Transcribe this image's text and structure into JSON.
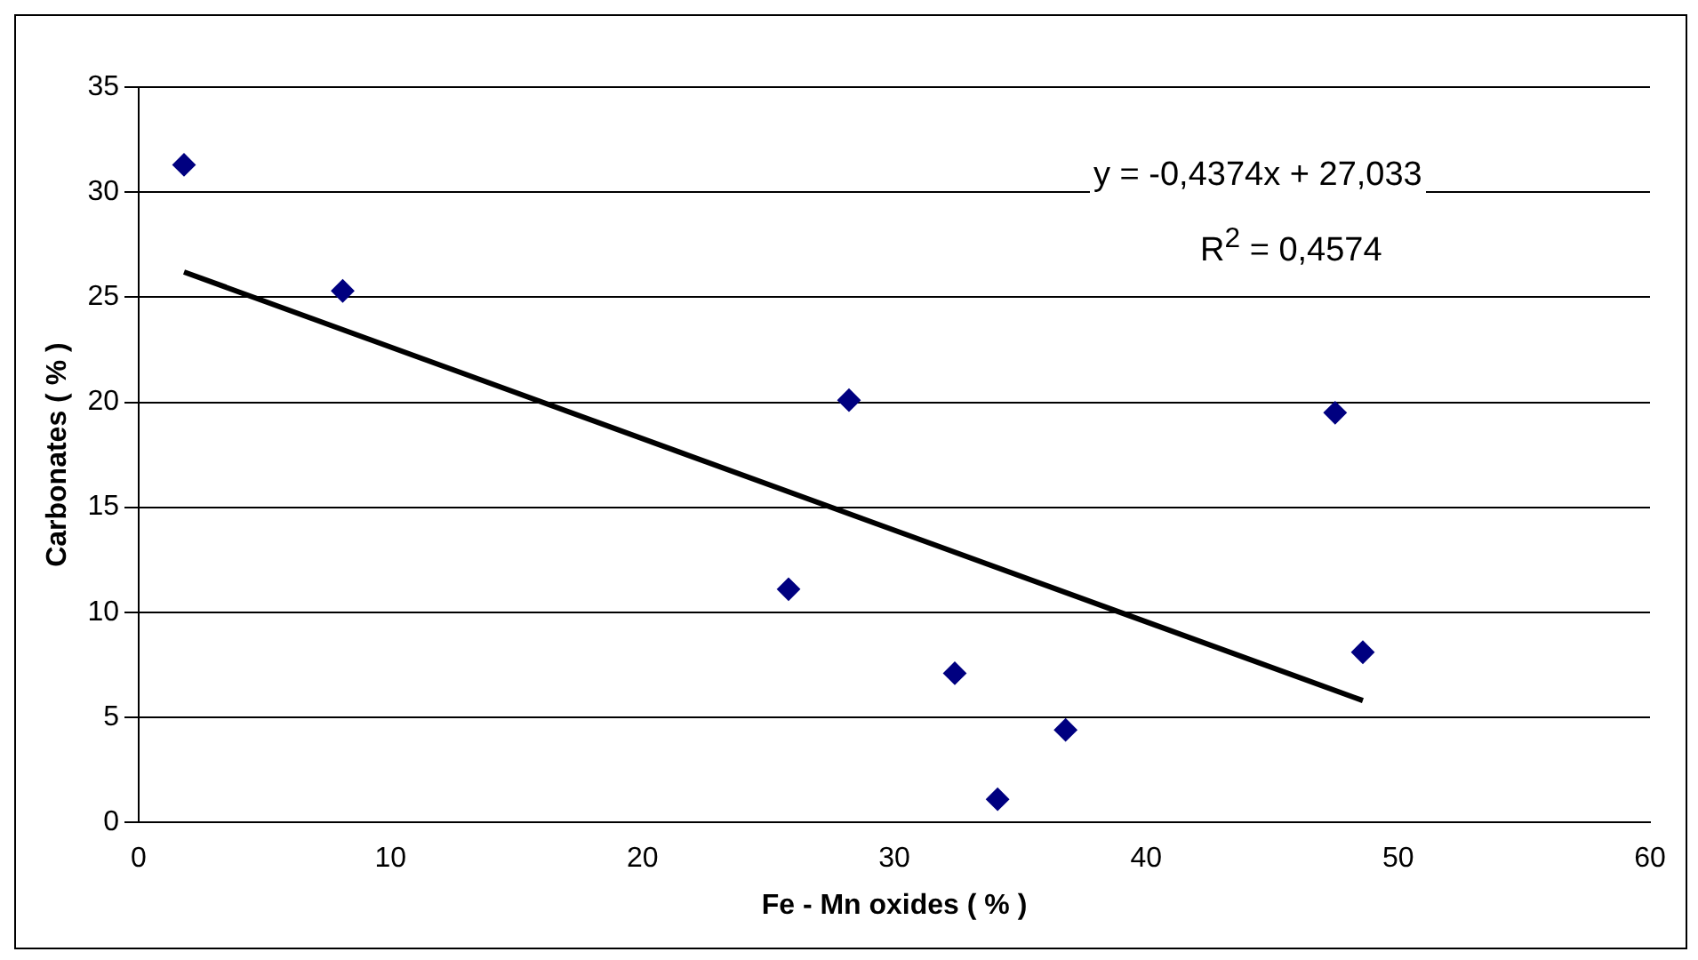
{
  "chart_data": {
    "type": "scatter",
    "xlabel": "Fe - Mn oxides ( % )",
    "ylabel": "Carbonates ( % )",
    "annotations": [
      "y = -0,4374x + 27,033",
      "R$^{2}$ = 0,4574"
    ],
    "series": [
      {
        "color": "#000080",
        "x": [
          1.8,
          8.1,
          25.8,
          28.2,
          32.4,
          34.1,
          36.8,
          47.5,
          48.6
        ],
        "values": [
          31.3,
          25.3,
          11.1,
          20.1,
          7.1,
          1.1,
          4.4,
          19.5,
          8.1
        ],
        "marker": "diamond"
      },
      {
        "type": "line",
        "color": "#000000",
        "x": [
          1.8,
          48.6
        ],
        "values": [
          26.2,
          5.8
        ],
        "marker": "none",
        "line_style": "solid"
      }
    ],
    "xlim": [
      0,
      60
    ],
    "xticks": [
      0,
      10,
      20,
      30,
      40,
      50,
      60
    ],
    "ylim": [
      0,
      35
    ],
    "yticks": [
      0,
      5,
      10,
      15,
      20,
      25,
      30,
      35
    ],
    "grid": "y",
    "legend": false
  }
}
